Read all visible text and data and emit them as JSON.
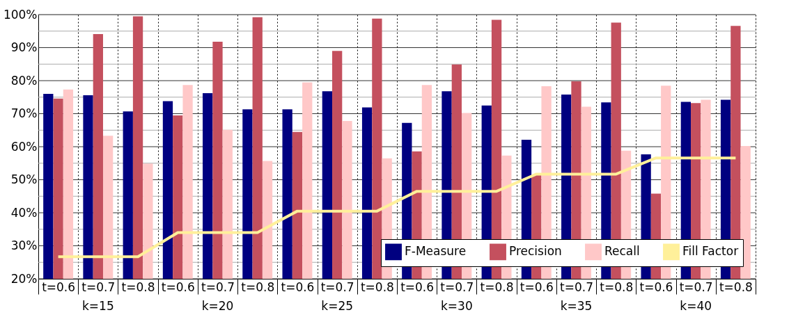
{
  "chart_data": {
    "type": "bar",
    "categories": [
      "t=0.6",
      "t=0.7",
      "t=0.8",
      "t=0.6",
      "t=0.7",
      "t=0.8",
      "t=0.6",
      "t=0.7",
      "t=0.8",
      "t=0.6",
      "t=0.7",
      "t=0.8",
      "t=0.6",
      "t=0.7",
      "t=0.8",
      "t=0.6",
      "t=0.7",
      "t=0.8"
    ],
    "series": [
      {
        "name": "F-Measure",
        "color": "#000080",
        "values": [
          76.0,
          75.6,
          70.7,
          73.8,
          76.2,
          71.3,
          71.3,
          76.8,
          71.9,
          67.2,
          76.8,
          72.5,
          62.1,
          75.8,
          73.4,
          57.7,
          73.6,
          74.2
        ]
      },
      {
        "name": "Precision",
        "color": "#c4505e",
        "values": [
          74.6,
          94.1,
          99.5,
          69.5,
          91.8,
          99.2,
          64.5,
          89.0,
          98.8,
          58.6,
          84.9,
          98.4,
          51.5,
          79.8,
          97.6,
          45.8,
          73.2,
          96.6
        ]
      },
      {
        "name": "Recall",
        "color": "#ffc8c8",
        "values": [
          77.3,
          63.3,
          54.9,
          78.7,
          65.1,
          55.7,
          79.5,
          67.8,
          56.5,
          78.7,
          70.2,
          57.3,
          78.3,
          72.1,
          58.8,
          78.5,
          74.2,
          60.2
        ]
      },
      {
        "name": "Fill Factor",
        "type": "line",
        "color": "#fff09a",
        "values": [
          26.7,
          26.7,
          26.7,
          34.0,
          34.0,
          34.0,
          40.5,
          40.5,
          40.5,
          46.5,
          46.5,
          46.5,
          51.7,
          51.7,
          51.7,
          56.6,
          56.6,
          56.6
        ]
      }
    ],
    "annotations": [
      "k=15",
      "k=20",
      "k=25",
      "k=30",
      "k=35",
      "k=40"
    ],
    "ylim": [
      20,
      100
    ],
    "yticks": [
      {
        "value": 20,
        "label": "20%"
      },
      {
        "value": 25,
        "label": null
      },
      {
        "value": 30,
        "label": "30%"
      },
      {
        "value": 35,
        "label": null
      },
      {
        "value": 40,
        "label": "40%"
      },
      {
        "value": 45,
        "label": null
      },
      {
        "value": 50,
        "label": "50%"
      },
      {
        "value": 55,
        "label": null
      },
      {
        "value": 60,
        "label": "60%"
      },
      {
        "value": 65,
        "label": null
      },
      {
        "value": 70,
        "label": "70%"
      },
      {
        "value": 75,
        "label": null
      },
      {
        "value": 80,
        "label": "80%"
      },
      {
        "value": 85,
        "label": null
      },
      {
        "value": 90,
        "label": "90%"
      },
      {
        "value": 95,
        "label": null
      },
      {
        "value": 100,
        "label": "100%"
      }
    ],
    "grid": true,
    "legend": "bottom right"
  }
}
